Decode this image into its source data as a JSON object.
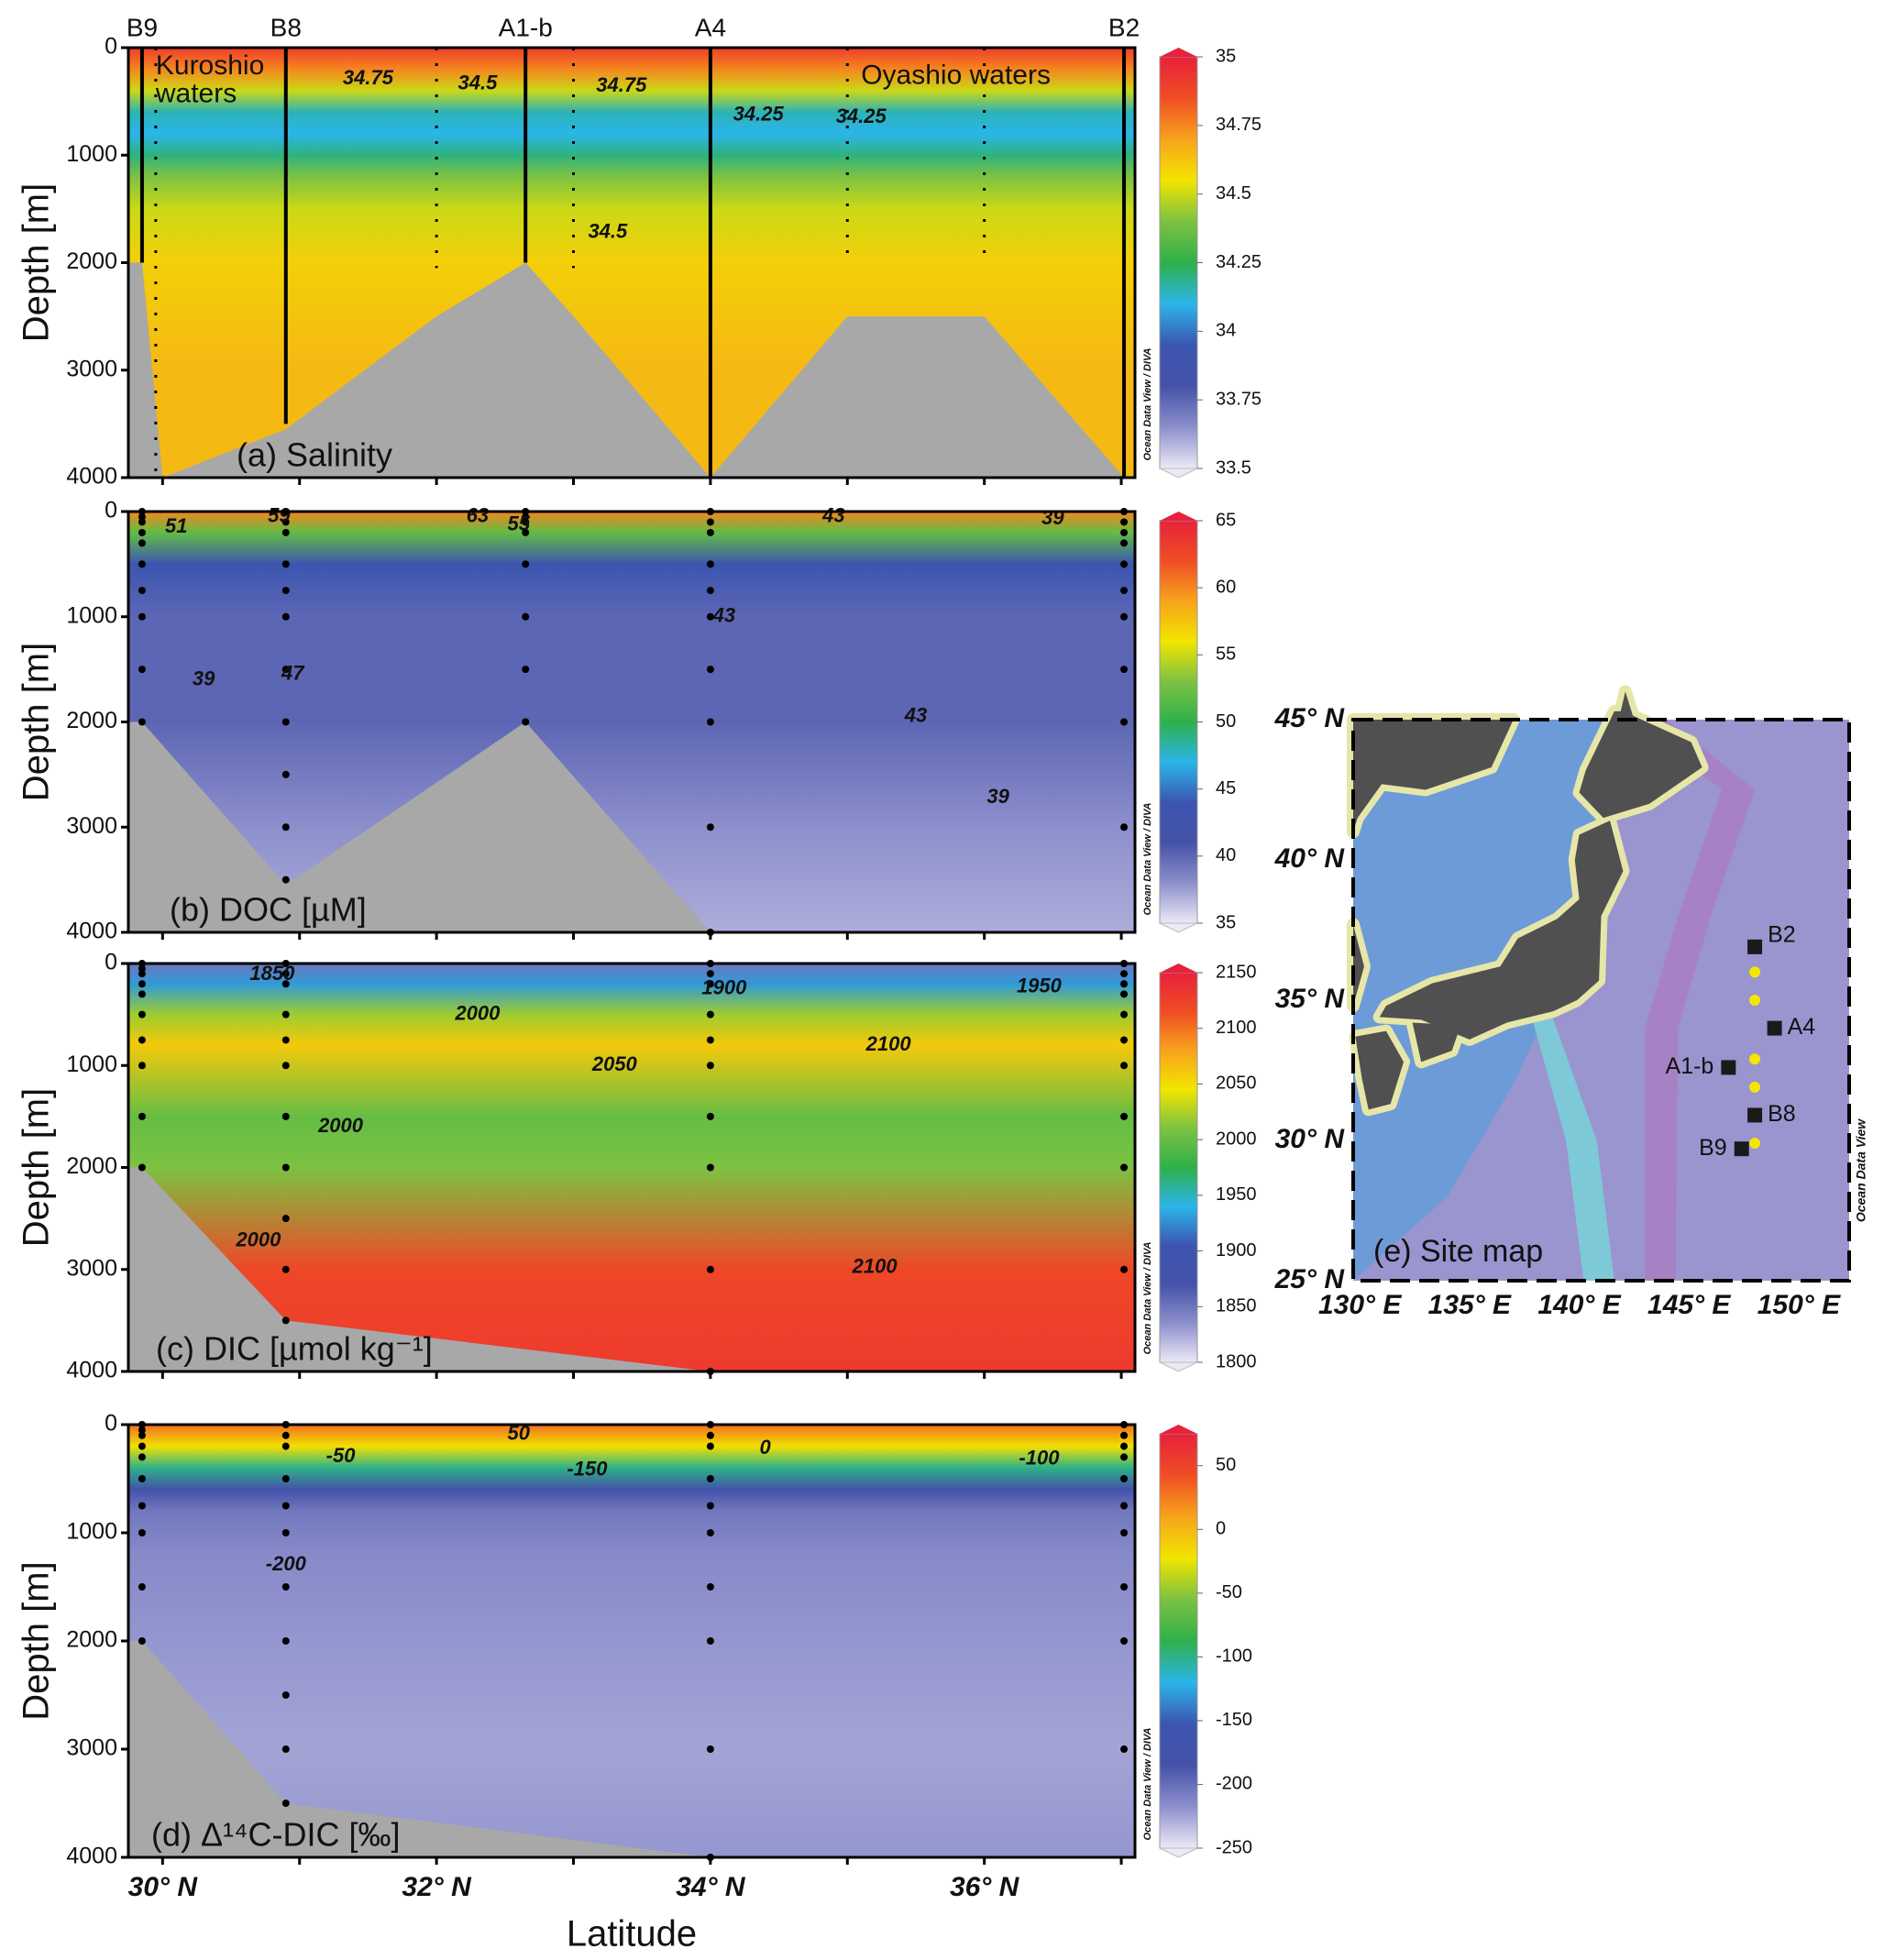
{
  "chart_data": [
    {
      "type": "section",
      "title": "(a) Salinity",
      "ylabel": "Depth [m]",
      "side_note": "Ocean Data View / DIVA",
      "xlim": [
        29.75,
        37.1
      ],
      "ylim": [
        0,
        4000
      ],
      "xticks": [
        30,
        31,
        32,
        33,
        34,
        35,
        36,
        37
      ],
      "yticks": [
        0,
        1000,
        2000,
        3000,
        4000
      ],
      "colorbar": {
        "lim": [
          33.5,
          35
        ],
        "ticks": [
          33.5,
          33.75,
          34,
          34.25,
          34.5,
          34.75,
          35
        ],
        "colors": [
          "#ece9f5",
          "#8d8fcc",
          "#4552a8",
          "#3c55b0",
          "#2bb5ea",
          "#2fb04a",
          "#7cc242",
          "#f2e500",
          "#f7a31c",
          "#f04d24",
          "#e8213c"
        ]
      },
      "profile": {
        "depth": [
          0,
          200,
          400,
          600,
          800,
          1000,
          1200,
          1500,
          2000,
          3000,
          4000
        ],
        "values": [
          34.9,
          34.75,
          34.5,
          34.15,
          34.1,
          34.2,
          34.4,
          34.5,
          34.6,
          34.65,
          34.65
        ]
      },
      "seafloor": {
        "x": [
          29.75,
          29.75,
          29.85,
          30.0,
          30.9,
          32.0,
          32.65,
          33.0,
          34.0,
          35.0,
          36.0,
          37.02
        ],
        "y": [
          4000,
          2000,
          2000,
          4000,
          3550,
          2500,
          2000,
          2500,
          4000,
          2500,
          2500,
          4000
        ],
        "color": "#a8a8a8"
      },
      "stations": [
        {
          "name": "B9",
          "lat": 29.85,
          "bottom": 2000
        },
        {
          "name": null,
          "lat": 29.95,
          "bottom": 4000
        },
        {
          "name": "B8",
          "lat": 30.9,
          "bottom": 3500
        },
        {
          "name": null,
          "lat": 32.0,
          "bottom": 2050
        },
        {
          "name": "A1-b",
          "lat": 32.65,
          "bottom": 2000
        },
        {
          "name": null,
          "lat": 33.0,
          "bottom": 2050
        },
        {
          "name": "A4",
          "lat": 34.0,
          "bottom": 4000
        },
        {
          "name": null,
          "lat": 35.0,
          "bottom": 2000
        },
        {
          "name": null,
          "lat": 36.0,
          "bottom": 2000
        },
        {
          "name": "B2",
          "lat": 37.02,
          "bottom": 4000
        }
      ],
      "contour_labels": [
        {
          "value": 34.75,
          "x": 31.5,
          "y": 290
        },
        {
          "value": 34.5,
          "x": 32.3,
          "y": 340
        },
        {
          "value": 34.75,
          "x": 33.35,
          "y": 360
        },
        {
          "value": 34.25,
          "x": 34.35,
          "y": 630
        },
        {
          "value": 34.25,
          "x": 35.1,
          "y": 650
        },
        {
          "value": 34.5,
          "x": 33.25,
          "y": 1720
        }
      ],
      "annotations": [
        {
          "text": "Kuroshio",
          "x": 29.95,
          "y": 180,
          "color": "#8a7c72"
        },
        {
          "text": "waters",
          "x": 29.95,
          "y": 440,
          "color": "#8a7c72"
        },
        {
          "text": "Oyashio waters",
          "x": 35.1,
          "y": 270,
          "color": "#ffffff"
        }
      ]
    },
    {
      "type": "section",
      "title": "(b) DOC [µM]",
      "ylabel": "Depth [m]",
      "side_note": "Ocean Data View / DIVA",
      "xlim": [
        29.75,
        37.1
      ],
      "ylim": [
        0,
        4000
      ],
      "xticks": [
        30,
        31,
        32,
        33,
        34,
        35,
        36,
        37
      ],
      "yticks": [
        0,
        1000,
        2000,
        3000,
        4000
      ],
      "colorbar": {
        "lim": [
          35,
          65
        ],
        "ticks": [
          35,
          40,
          45,
          50,
          55,
          60,
          65
        ],
        "colors": [
          "#ece9f5",
          "#8d8fcc",
          "#4552a8",
          "#3c55b0",
          "#2bb5ea",
          "#2fb04a",
          "#7cc242",
          "#f2e500",
          "#f7a31c",
          "#f04d24",
          "#e8213c"
        ]
      },
      "profile": {
        "depth": [
          0,
          200,
          500,
          1000,
          1500,
          2000,
          3000,
          4000
        ],
        "values": [
          60,
          52,
          44,
          40,
          40,
          40,
          38,
          37
        ]
      },
      "seafloor": {
        "x": [
          29.75,
          29.75,
          29.85,
          30.9,
          32.65,
          34.0
        ],
        "y": [
          4000,
          2000,
          2000,
          3550,
          2000,
          4000
        ],
        "color": "#a8a8a8"
      },
      "samples": [
        {
          "x": 29.85,
          "depths": [
            0,
            50,
            100,
            200,
            300,
            500,
            750,
            1000,
            1500,
            2000
          ]
        },
        {
          "x": 30.9,
          "depths": [
            0,
            100,
            200,
            500,
            750,
            1000,
            1500,
            2000,
            2500,
            3000,
            3500
          ]
        },
        {
          "x": 32.65,
          "depths": [
            0,
            50,
            100,
            200,
            500,
            1000,
            1500,
            2000
          ]
        },
        {
          "x": 34.0,
          "depths": [
            0,
            100,
            200,
            500,
            750,
            1000,
            1500,
            2000,
            3000,
            4000
          ]
        },
        {
          "x": 37.02,
          "depths": [
            0,
            100,
            200,
            300,
            500,
            750,
            1000,
            1500,
            2000,
            3000
          ]
        }
      ],
      "contour_labels": [
        {
          "value": 51,
          "x": 30.1,
          "y": 150
        },
        {
          "value": 59,
          "x": 30.85,
          "y": 50
        },
        {
          "value": 63,
          "x": 32.3,
          "y": 50
        },
        {
          "value": 55,
          "x": 32.6,
          "y": 130
        },
        {
          "value": 43,
          "x": 34.9,
          "y": 50
        },
        {
          "value": 39,
          "x": 36.5,
          "y": 70
        },
        {
          "value": 43,
          "x": 34.1,
          "y": 1000
        },
        {
          "value": 47,
          "x": 30.95,
          "y": 1550
        },
        {
          "value": 39,
          "x": 30.3,
          "y": 1600
        },
        {
          "value": 43,
          "x": 35.5,
          "y": 1950
        },
        {
          "value": 39,
          "x": 36.1,
          "y": 2720
        }
      ]
    },
    {
      "type": "section",
      "title": "(c) DIC [µmol kg⁻¹]",
      "ylabel": "Depth [m]",
      "side_note": "Ocean Data View / DIVA",
      "xlim": [
        29.75,
        37.1
      ],
      "ylim": [
        0,
        4000
      ],
      "xticks": [
        30,
        31,
        32,
        33,
        34,
        35,
        36,
        37
      ],
      "yticks": [
        0,
        1000,
        2000,
        3000,
        4000
      ],
      "colorbar": {
        "lim": [
          1800,
          2150
        ],
        "ticks": [
          1800,
          1850,
          1900,
          1950,
          2000,
          2050,
          2100,
          2150
        ],
        "colors": [
          "#ece9f5",
          "#8d8fcc",
          "#4552a8",
          "#3c55b0",
          "#2bb5ea",
          "#2fb04a",
          "#7cc242",
          "#f2e500",
          "#f7a31c",
          "#f04d24",
          "#e8213c"
        ]
      },
      "profile": {
        "depth": [
          0,
          200,
          500,
          800,
          1500,
          2000,
          3000,
          4000
        ],
        "values": [
          1850,
          1930,
          2020,
          2060,
          2000,
          2010,
          2120,
          2130
        ]
      },
      "seafloor": {
        "x": [
          29.75,
          29.75,
          29.85,
          30.9,
          34.0
        ],
        "y": [
          4000,
          2000,
          2000,
          3500,
          4000
        ],
        "color": "#a8a8a8"
      },
      "samples": [
        {
          "x": 29.85,
          "depths": [
            0,
            50,
            100,
            200,
            300,
            500,
            750,
            1000,
            1500,
            2000
          ]
        },
        {
          "x": 30.9,
          "depths": [
            0,
            100,
            200,
            500,
            750,
            1000,
            1500,
            2000,
            2500,
            3000,
            3500
          ]
        },
        {
          "x": 34.0,
          "depths": [
            0,
            100,
            200,
            500,
            750,
            1000,
            1500,
            2000,
            3000,
            4000
          ]
        },
        {
          "x": 37.02,
          "depths": [
            0,
            100,
            200,
            300,
            500,
            750,
            1000,
            1500,
            2000,
            3000
          ]
        }
      ],
      "contour_labels": [
        {
          "value": 1850,
          "x": 30.8,
          "y": 110
        },
        {
          "value": 1900,
          "x": 34.1,
          "y": 250
        },
        {
          "value": 1950,
          "x": 36.4,
          "y": 230
        },
        {
          "value": 2000,
          "x": 32.3,
          "y": 500
        },
        {
          "value": 2050,
          "x": 33.3,
          "y": 1000
        },
        {
          "value": 2100,
          "x": 35.3,
          "y": 800
        },
        {
          "value": 2000,
          "x": 31.3,
          "y": 1600
        },
        {
          "value": 2000,
          "x": 30.7,
          "y": 2720
        },
        {
          "value": 2100,
          "x": 35.2,
          "y": 2980
        }
      ]
    },
    {
      "type": "section",
      "title": "(d) Δ¹⁴C-DIC [‰]",
      "ylabel": "Depth [m]",
      "xlabel": "Latitude",
      "side_note": "Ocean Data View / DIVA",
      "xlim": [
        29.75,
        37.1
      ],
      "ylim": [
        0,
        4000
      ],
      "xticks": [
        {
          "value": 30,
          "label": "30° N"
        },
        31,
        {
          "value": 32,
          "label": "32° N"
        },
        33,
        {
          "value": 34,
          "label": "34° N"
        },
        35,
        {
          "value": 36,
          "label": "36° N"
        },
        37
      ],
      "yticks": [
        0,
        1000,
        2000,
        3000,
        4000
      ],
      "colorbar": {
        "lim": [
          -250,
          75
        ],
        "ticks": [
          -250,
          -200,
          -150,
          -100,
          -50,
          0,
          50
        ],
        "colors": [
          "#ece9f5",
          "#8d8fcc",
          "#4552a8",
          "#3c55b0",
          "#2bb5ea",
          "#2fb04a",
          "#7cc242",
          "#f2e500",
          "#f7a31c",
          "#f04d24",
          "#e8213c"
        ]
      },
      "profile": {
        "depth": [
          0,
          200,
          400,
          600,
          800,
          1200,
          2000,
          3000,
          4000
        ],
        "values": [
          30,
          -20,
          -100,
          -180,
          -205,
          -215,
          -220,
          -225,
          -220
        ]
      },
      "seafloor": {
        "x": [
          29.75,
          29.75,
          29.85,
          30.9,
          34.0
        ],
        "y": [
          4000,
          2000,
          2000,
          3500,
          4000
        ],
        "color": "#a8a8a8"
      },
      "samples": [
        {
          "x": 29.85,
          "depths": [
            0,
            50,
            100,
            200,
            300,
            500,
            750,
            1000,
            1500,
            2000
          ]
        },
        {
          "x": 30.9,
          "depths": [
            0,
            100,
            200,
            500,
            750,
            1000,
            1500,
            2000,
            2500,
            3000,
            3500
          ]
        },
        {
          "x": 34.0,
          "depths": [
            0,
            100,
            200,
            500,
            750,
            1000,
            1500,
            2000,
            3000,
            4000
          ]
        },
        {
          "x": 37.02,
          "depths": [
            0,
            100,
            200,
            300,
            500,
            750,
            1000,
            1500,
            2000,
            3000
          ]
        }
      ],
      "contour_labels": [
        {
          "value": 50,
          "x": 32.6,
          "y": 90
        },
        {
          "value": 0,
          "x": 34.4,
          "y": 220
        },
        {
          "value": -50,
          "x": 31.3,
          "y": 300
        },
        {
          "value": -100,
          "x": 36.4,
          "y": 320
        },
        {
          "value": -150,
          "x": 33.1,
          "y": 420
        },
        {
          "value": -200,
          "x": 30.9,
          "y": 1300
        }
      ]
    },
    {
      "type": "map",
      "title": "(e) Site map",
      "side_note": "Ocean Data View",
      "xlim": [
        129.7,
        152.3
      ],
      "ylim": [
        25,
        45
      ],
      "xticks": [
        {
          "value": 130,
          "label": "130° E"
        },
        {
          "value": 135,
          "label": "135° E"
        },
        {
          "value": 140,
          "label": "140° E"
        },
        {
          "value": 145,
          "label": "145° E"
        },
        {
          "value": 150,
          "label": "150° E"
        }
      ],
      "yticks": [
        {
          "value": 25,
          "label": "25° N"
        },
        {
          "value": 30,
          "label": "30° N"
        },
        {
          "value": 35,
          "label": "35° N"
        },
        {
          "value": 40,
          "label": "40° N"
        },
        {
          "value": 45,
          "label": "45° N"
        }
      ],
      "stations": {
        "names": [
          "B2",
          "A4",
          "A1-b",
          "B8",
          "B9"
        ],
        "lon": [
          148.0,
          148.9,
          146.8,
          148.0,
          147.4
        ],
        "lat": [
          36.9,
          34.0,
          32.6,
          30.9,
          29.7
        ],
        "color": "#1a1a1a"
      },
      "extra_sites": {
        "lon": [
          148.0,
          148.0,
          148.0,
          148.0,
          148.0
        ],
        "lat": [
          36.0,
          35.0,
          32.9,
          31.9,
          29.9
        ],
        "color": "#f5e600"
      }
    }
  ]
}
